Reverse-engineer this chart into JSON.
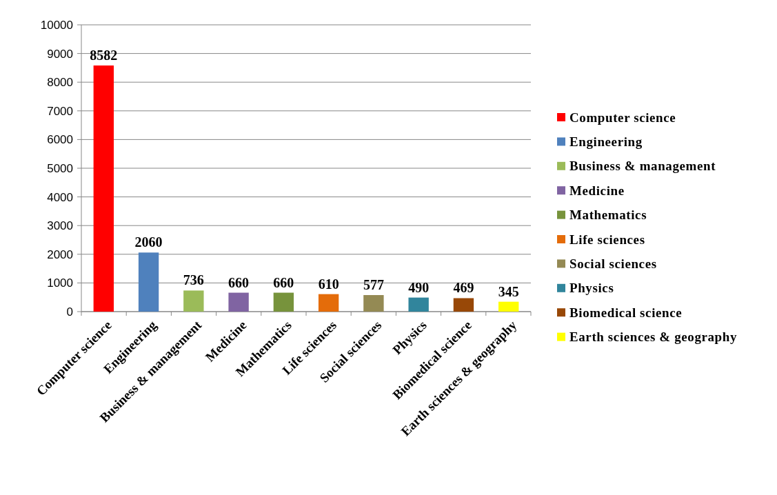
{
  "chart_data": {
    "type": "bar",
    "categories": [
      "Computer science",
      "Engineering",
      "Business & management",
      "Medicine",
      "Mathematics",
      "Life sciences",
      "Social sciences",
      "Physics",
      "Biomedical science",
      "Earth sciences & geography"
    ],
    "series": [
      {
        "name": "Computer science",
        "color": "#ff0000",
        "values": [
          8582,
          null,
          null,
          null,
          null,
          null,
          null,
          null,
          null,
          null
        ]
      },
      {
        "name": "Engineering",
        "color": "#4f81bd",
        "values": [
          null,
          2060,
          null,
          null,
          null,
          null,
          null,
          null,
          null,
          null
        ]
      },
      {
        "name": "Business & management",
        "color": "#9bbb59",
        "values": [
          null,
          null,
          736,
          null,
          null,
          null,
          null,
          null,
          null,
          null
        ]
      },
      {
        "name": "Medicine",
        "color": "#8064a2",
        "values": [
          null,
          null,
          null,
          660,
          null,
          null,
          null,
          null,
          null,
          null
        ]
      },
      {
        "name": "Mathematics",
        "color": "#77933c",
        "values": [
          null,
          null,
          null,
          null,
          660,
          null,
          null,
          null,
          null,
          null
        ]
      },
      {
        "name": "Life sciences",
        "color": "#e46c0a",
        "values": [
          null,
          null,
          null,
          null,
          null,
          610,
          null,
          null,
          null,
          null
        ]
      },
      {
        "name": "Social sciences",
        "color": "#948a54",
        "values": [
          null,
          null,
          null,
          null,
          null,
          null,
          577,
          null,
          null,
          null
        ]
      },
      {
        "name": "Physics",
        "color": "#31859c",
        "values": [
          null,
          null,
          null,
          null,
          null,
          null,
          null,
          490,
          null,
          null
        ]
      },
      {
        "name": "Biomedical science",
        "color": "#984807",
        "values": [
          null,
          null,
          null,
          null,
          null,
          null,
          null,
          null,
          469,
          null
        ]
      },
      {
        "name": "Earth sciences & geography",
        "color": "#ffff00",
        "values": [
          null,
          null,
          null,
          null,
          null,
          null,
          null,
          null,
          null,
          345
        ]
      }
    ],
    "ylim": [
      0,
      10000
    ],
    "yticks": [
      0,
      1000,
      2000,
      3000,
      4000,
      5000,
      6000,
      7000,
      8000,
      9000,
      10000
    ],
    "grid": "y",
    "legend": "right",
    "data_labels": true
  }
}
